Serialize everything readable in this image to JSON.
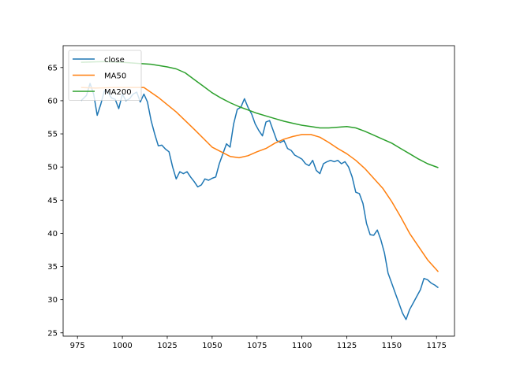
{
  "chart_data": {
    "type": "line",
    "title": "",
    "xlabel": "",
    "ylabel": "",
    "xlim": [
      967,
      1185
    ],
    "ylim": [
      24.5,
      68.3
    ],
    "xticks": [
      975,
      1000,
      1025,
      1050,
      1075,
      1100,
      1125,
      1150,
      1175
    ],
    "yticks": [
      25,
      30,
      35,
      40,
      45,
      50,
      55,
      60,
      65
    ],
    "grid": false,
    "legend": {
      "placement": "top-left",
      "entries": [
        "close",
        "MA50",
        "MA200"
      ]
    },
    "series": [
      {
        "name": "close",
        "color": "#1f77b4",
        "points": [
          [
            977,
            60.0
          ],
          [
            980,
            60.8
          ],
          [
            982,
            62.6
          ],
          [
            984,
            61.0
          ],
          [
            986,
            57.8
          ],
          [
            988,
            59.5
          ],
          [
            990,
            61.5
          ],
          [
            992,
            61.3
          ],
          [
            994,
            60.4
          ],
          [
            996,
            60.2
          ],
          [
            998,
            58.8
          ],
          [
            1000,
            61.0
          ],
          [
            1002,
            60.0
          ],
          [
            1004,
            60.3
          ],
          [
            1006,
            61.0
          ],
          [
            1008,
            61.3
          ],
          [
            1010,
            59.8
          ],
          [
            1012,
            61.0
          ],
          [
            1014,
            59.8
          ],
          [
            1016,
            57.0
          ],
          [
            1018,
            55.0
          ],
          [
            1020,
            53.2
          ],
          [
            1022,
            53.3
          ],
          [
            1024,
            52.7
          ],
          [
            1026,
            52.3
          ],
          [
            1028,
            50.0
          ],
          [
            1030,
            48.2
          ],
          [
            1032,
            49.3
          ],
          [
            1034,
            49.0
          ],
          [
            1036,
            49.3
          ],
          [
            1038,
            48.5
          ],
          [
            1040,
            47.8
          ],
          [
            1042,
            47.0
          ],
          [
            1044,
            47.3
          ],
          [
            1046,
            48.2
          ],
          [
            1048,
            48.0
          ],
          [
            1050,
            48.3
          ],
          [
            1052,
            48.5
          ],
          [
            1054,
            50.5
          ],
          [
            1056,
            52.0
          ],
          [
            1058,
            53.5
          ],
          [
            1060,
            53.0
          ],
          [
            1062,
            56.5
          ],
          [
            1064,
            58.7
          ],
          [
            1066,
            59.0
          ],
          [
            1068,
            60.3
          ],
          [
            1070,
            59.0
          ],
          [
            1072,
            58.0
          ],
          [
            1074,
            56.5
          ],
          [
            1076,
            55.5
          ],
          [
            1078,
            54.7
          ],
          [
            1080,
            56.8
          ],
          [
            1082,
            57.0
          ],
          [
            1084,
            55.5
          ],
          [
            1086,
            54.0
          ],
          [
            1088,
            53.7
          ],
          [
            1090,
            54.0
          ],
          [
            1092,
            52.8
          ],
          [
            1094,
            52.5
          ],
          [
            1096,
            51.8
          ],
          [
            1098,
            51.5
          ],
          [
            1100,
            51.2
          ],
          [
            1102,
            50.5
          ],
          [
            1104,
            50.2
          ],
          [
            1106,
            51.0
          ],
          [
            1108,
            49.5
          ],
          [
            1110,
            49.0
          ],
          [
            1112,
            50.5
          ],
          [
            1114,
            50.8
          ],
          [
            1116,
            51.0
          ],
          [
            1118,
            50.8
          ],
          [
            1120,
            51.0
          ],
          [
            1122,
            50.5
          ],
          [
            1124,
            50.8
          ],
          [
            1126,
            50.0
          ],
          [
            1128,
            48.5
          ],
          [
            1130,
            46.2
          ],
          [
            1132,
            46.0
          ],
          [
            1134,
            44.5
          ],
          [
            1136,
            41.5
          ],
          [
            1138,
            39.8
          ],
          [
            1140,
            39.7
          ],
          [
            1142,
            40.5
          ],
          [
            1144,
            39.0
          ],
          [
            1146,
            37.0
          ],
          [
            1148,
            34.0
          ],
          [
            1150,
            32.5
          ],
          [
            1152,
            31.0
          ],
          [
            1154,
            29.5
          ],
          [
            1156,
            28.0
          ],
          [
            1158,
            27.0
          ],
          [
            1160,
            28.5
          ],
          [
            1162,
            29.5
          ],
          [
            1164,
            30.5
          ],
          [
            1166,
            31.5
          ],
          [
            1168,
            33.2
          ],
          [
            1170,
            33.0
          ],
          [
            1172,
            32.5
          ],
          [
            1174,
            32.2
          ],
          [
            1176,
            31.8
          ]
        ]
      },
      {
        "name": "MA50",
        "color": "#ff7f0e",
        "points": [
          [
            977,
            62.0
          ],
          [
            985,
            61.9
          ],
          [
            995,
            62.0
          ],
          [
            1005,
            62.0
          ],
          [
            1012,
            62.0
          ],
          [
            1020,
            60.5
          ],
          [
            1030,
            58.3
          ],
          [
            1040,
            55.7
          ],
          [
            1050,
            53.0
          ],
          [
            1055,
            52.3
          ],
          [
            1060,
            51.6
          ],
          [
            1065,
            51.4
          ],
          [
            1070,
            51.7
          ],
          [
            1075,
            52.3
          ],
          [
            1080,
            52.8
          ],
          [
            1085,
            53.6
          ],
          [
            1090,
            54.2
          ],
          [
            1095,
            54.6
          ],
          [
            1100,
            54.9
          ],
          [
            1105,
            54.9
          ],
          [
            1110,
            54.5
          ],
          [
            1115,
            53.7
          ],
          [
            1120,
            52.8
          ],
          [
            1125,
            52.0
          ],
          [
            1130,
            51.0
          ],
          [
            1135,
            49.8
          ],
          [
            1140,
            48.3
          ],
          [
            1145,
            46.8
          ],
          [
            1150,
            44.8
          ],
          [
            1155,
            42.5
          ],
          [
            1160,
            40.0
          ],
          [
            1165,
            38.0
          ],
          [
            1170,
            36.0
          ],
          [
            1176,
            34.2
          ]
        ]
      },
      {
        "name": "MA200",
        "color": "#2ca02c",
        "points": [
          [
            977,
            65.8
          ],
          [
            990,
            65.9
          ],
          [
            1000,
            65.8
          ],
          [
            1010,
            65.6
          ],
          [
            1016,
            65.5
          ],
          [
            1025,
            65.1
          ],
          [
            1030,
            64.8
          ],
          [
            1035,
            64.2
          ],
          [
            1040,
            63.2
          ],
          [
            1045,
            62.2
          ],
          [
            1050,
            61.2
          ],
          [
            1055,
            60.4
          ],
          [
            1060,
            59.7
          ],
          [
            1065,
            59.1
          ],
          [
            1070,
            58.6
          ],
          [
            1075,
            58.1
          ],
          [
            1080,
            57.7
          ],
          [
            1085,
            57.3
          ],
          [
            1090,
            56.9
          ],
          [
            1095,
            56.6
          ],
          [
            1100,
            56.3
          ],
          [
            1105,
            56.1
          ],
          [
            1110,
            55.9
          ],
          [
            1115,
            55.9
          ],
          [
            1120,
            56.0
          ],
          [
            1125,
            56.1
          ],
          [
            1130,
            55.9
          ],
          [
            1135,
            55.4
          ],
          [
            1140,
            54.8
          ],
          [
            1145,
            54.2
          ],
          [
            1150,
            53.6
          ],
          [
            1155,
            52.8
          ],
          [
            1160,
            52.0
          ],
          [
            1165,
            51.2
          ],
          [
            1170,
            50.5
          ],
          [
            1176,
            49.9
          ]
        ]
      }
    ]
  }
}
